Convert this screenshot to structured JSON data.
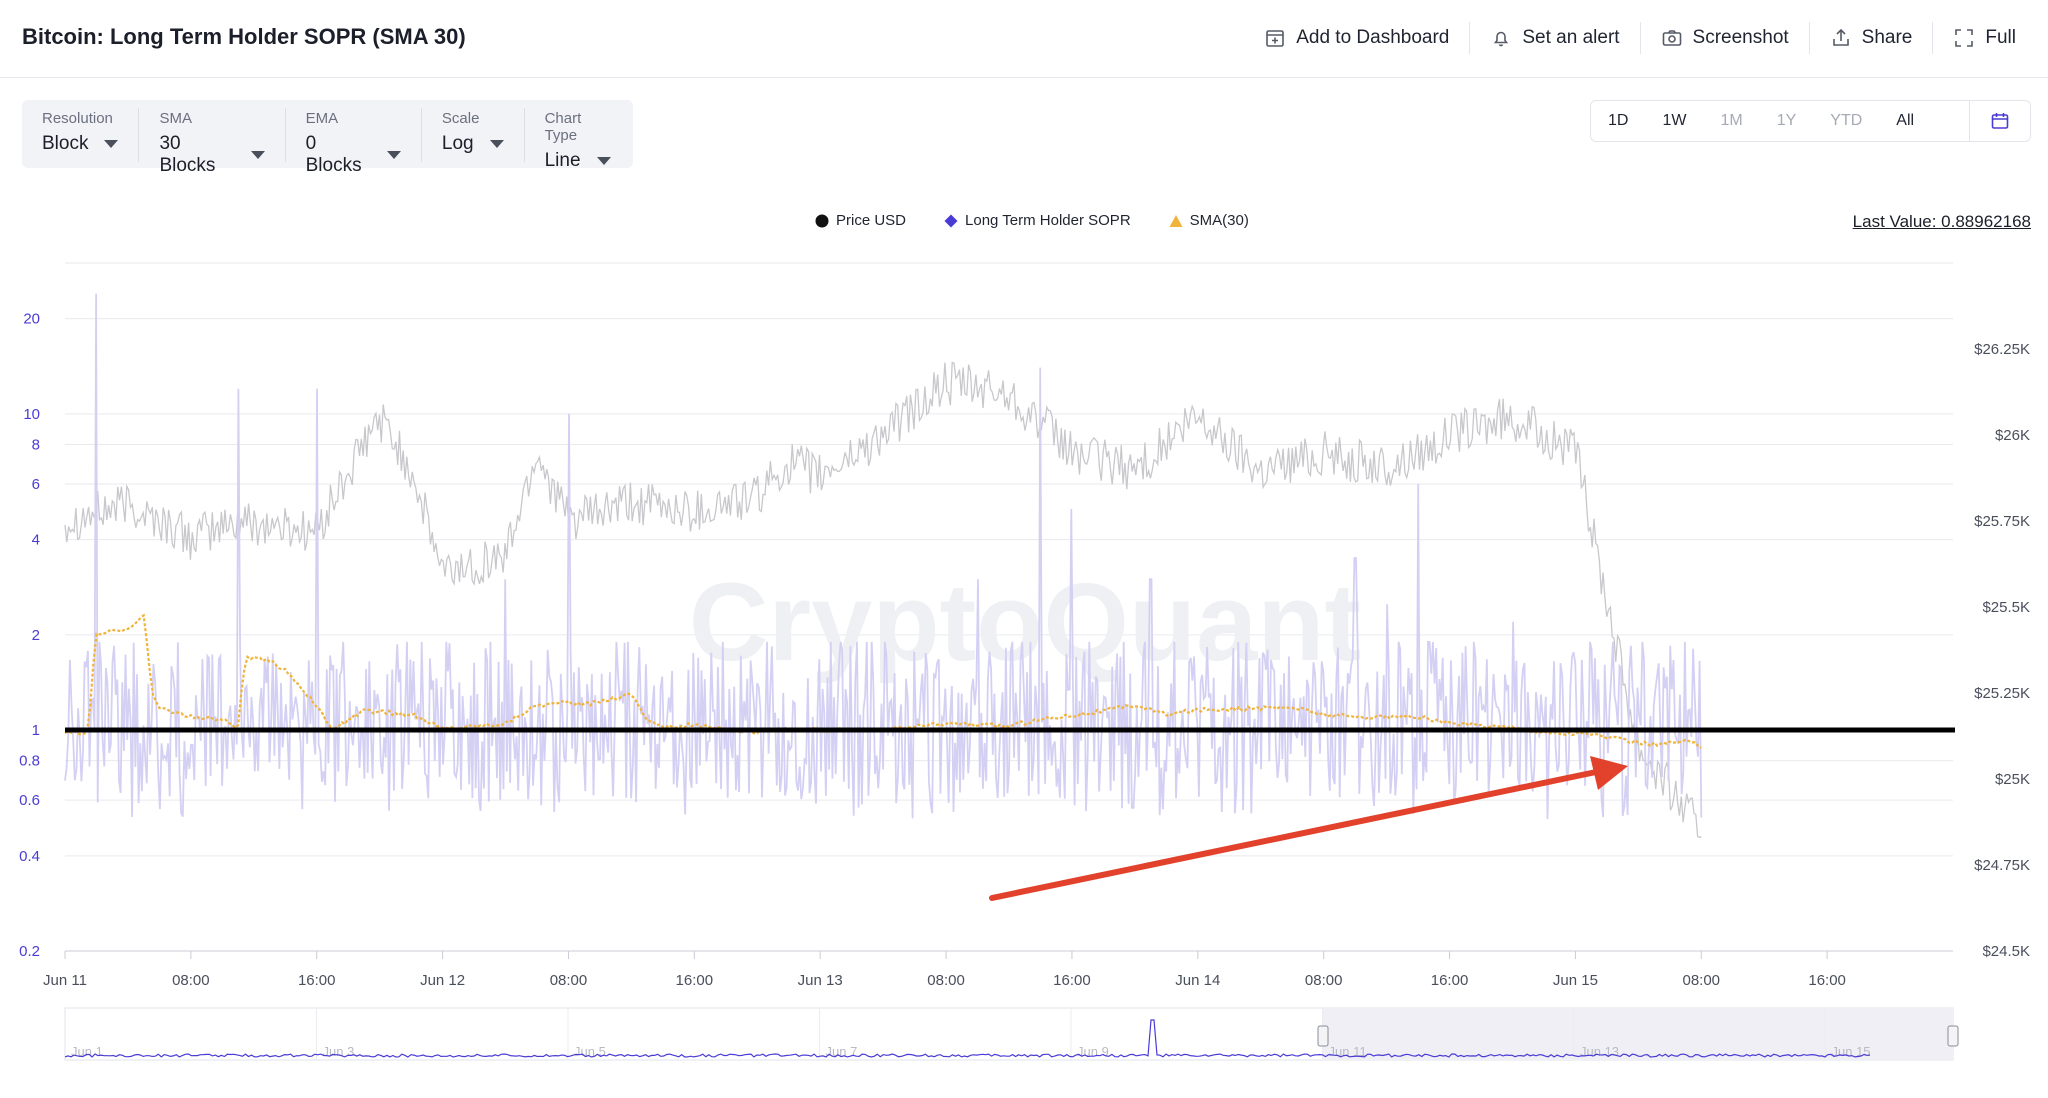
{
  "page_title": "Bitcoin: Long Term Holder SOPR (SMA 30)",
  "actions": [
    {
      "name": "add-to-dashboard-button",
      "icon": "dashboard-plus-icon",
      "label": "Add to Dashboard"
    },
    {
      "name": "set-alert-button",
      "icon": "bell-icon",
      "label": "Set an alert"
    },
    {
      "name": "screenshot-button",
      "icon": "camera-icon",
      "label": "Screenshot"
    },
    {
      "name": "share-button",
      "icon": "share-icon",
      "label": "Share"
    },
    {
      "name": "full-button",
      "icon": "fullscreen-icon",
      "label": "Full"
    }
  ],
  "controls": [
    {
      "label": "Resolution",
      "value": "Block"
    },
    {
      "label": "SMA",
      "value": "30 Blocks"
    },
    {
      "label": "EMA",
      "value": "0 Blocks"
    },
    {
      "label": "Scale",
      "value": "Log"
    },
    {
      "label": "Chart Type",
      "value": "Line"
    }
  ],
  "ranges": [
    {
      "label": "1D",
      "active": true
    },
    {
      "label": "1W",
      "active": true
    },
    {
      "label": "1M",
      "active": false
    },
    {
      "label": "1Y",
      "active": false
    },
    {
      "label": "YTD",
      "active": false
    },
    {
      "label": "All",
      "active": true
    }
  ],
  "last_value": "Last Value: 0.88962168",
  "watermark": "CryptoQuant",
  "colors": {
    "price": "#c8c8cc",
    "price_marker": "#111111",
    "sopr": "#d2cdf2",
    "sopr_marker": "#4a3bd6",
    "sma": "#f0b43a",
    "reference_line": "#000000",
    "arrow": "#e2412b",
    "left_axis_text": "#4a3bd6"
  },
  "chart_data": {
    "type": "line",
    "legend": [
      "Price USD",
      "Long Term Holder SOPR",
      "SMA(30)"
    ],
    "legend_position": "top-center",
    "x_ticks": [
      "Jun 11",
      "08:00",
      "16:00",
      "Jun 12",
      "08:00",
      "16:00",
      "Jun 13",
      "08:00",
      "16:00",
      "Jun 14",
      "08:00",
      "16:00",
      "Jun 15",
      "08:00",
      "16:00"
    ],
    "x_range_hours": [
      0,
      120
    ],
    "data_end_hour": 104,
    "y_left": {
      "scale": "log",
      "range": [
        0.2,
        30
      ],
      "ticks": [
        "0.2",
        "0.4",
        "0.6",
        "0.8",
        "1",
        "2",
        "4",
        "6",
        "8",
        "10",
        "20"
      ]
    },
    "y_right": {
      "scale": "linear",
      "range": [
        24500,
        26500
      ],
      "ticks": [
        "$24.5K",
        "$24.75K",
        "$25K",
        "$25.25K",
        "$25.5K",
        "$25.75K",
        "$26K",
        "$26.25K"
      ]
    },
    "reference_line": {
      "axis": "left",
      "value": 1
    },
    "grid": true,
    "price_usd": {
      "hour": [
        0,
        4,
        8,
        11,
        16,
        20,
        22,
        24,
        28,
        30,
        32,
        36,
        40,
        44,
        46,
        48,
        52,
        56,
        60,
        64,
        68,
        72,
        76,
        80,
        84,
        88,
        92,
        96,
        100,
        104
      ],
      "value": [
        25750,
        25800,
        25700,
        25750,
        25720,
        26050,
        25900,
        25600,
        25650,
        25950,
        25750,
        25800,
        25780,
        25820,
        25920,
        25880,
        26000,
        26150,
        26120,
        25950,
        25900,
        26050,
        25900,
        25950,
        25900,
        26000,
        26050,
        25950,
        25100,
        24850
      ]
    },
    "long_term_holder_sopr_peaks": {
      "hour": [
        2,
        11,
        16,
        28,
        32,
        58,
        62,
        64,
        69,
        82,
        84,
        86,
        92,
        97,
        101
      ],
      "value": [
        24,
        12,
        12,
        3,
        10,
        3,
        14,
        5,
        3,
        3.5,
        2.5,
        6,
        2.2,
        1.8,
        1.2
      ]
    },
    "sma_30": {
      "hour": [
        0,
        1.5,
        2,
        4,
        5,
        5.5,
        6,
        8,
        10,
        11,
        11.5,
        13,
        14,
        17,
        19,
        22,
        24,
        28,
        30,
        32,
        33,
        36,
        37,
        38,
        40,
        42,
        44,
        46,
        48,
        52,
        56,
        60,
        62,
        66,
        68,
        70,
        72,
        76,
        78,
        80,
        82,
        86,
        88,
        92,
        94,
        97,
        99,
        101,
        103,
        104
      ],
      "value": [
        0.98,
        0.98,
        2.0,
        2.1,
        2.3,
        1.3,
        1.18,
        1.1,
        1.08,
        1.02,
        1.7,
        1.65,
        1.55,
        1.0,
        1.15,
        1.12,
        1.01,
        1.05,
        1.2,
        1.22,
        1.2,
        1.3,
        1.08,
        1.02,
        1.04,
        1.0,
        0.99,
        1.01,
        1.0,
        1.0,
        1.05,
        1.03,
        1.08,
        1.15,
        1.2,
        1.12,
        1.16,
        1.17,
        1.18,
        1.12,
        1.1,
        1.1,
        1.05,
        1.02,
        0.98,
        0.97,
        0.93,
        0.9,
        0.92,
        0.89
      ]
    },
    "navigator_ticks": [
      "Jun 1",
      "Jun 3",
      "Jun 5",
      "Jun 7",
      "Jun 9",
      "Jun 11",
      "Jun 13",
      "Jun 15"
    ]
  }
}
